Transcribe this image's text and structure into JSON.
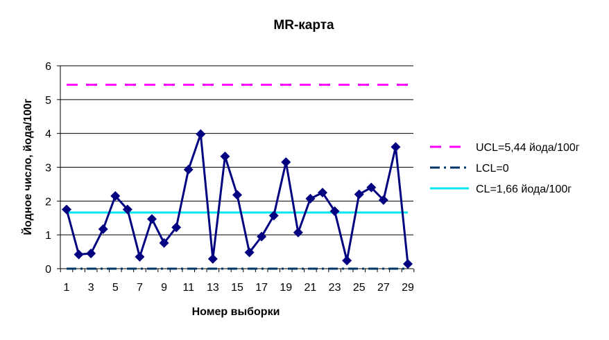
{
  "chart_data": {
    "type": "line",
    "title": "MR-карта",
    "xlabel": "Номер выборки",
    "ylabel": "Йодное число, йода/100г",
    "ylim": [
      0,
      6
    ],
    "yticks": [
      0,
      1,
      2,
      3,
      4,
      5,
      6
    ],
    "x": [
      1,
      2,
      3,
      4,
      5,
      6,
      7,
      8,
      9,
      10,
      11,
      12,
      13,
      14,
      15,
      16,
      17,
      18,
      19,
      20,
      21,
      22,
      23,
      24,
      25,
      26,
      27,
      28,
      29
    ],
    "xticks": [
      1,
      3,
      5,
      7,
      9,
      11,
      13,
      15,
      17,
      19,
      21,
      23,
      25,
      27,
      29
    ],
    "grid": "horizontal",
    "legend_position": "right",
    "series": [
      {
        "kind": "data",
        "color": "#000080",
        "marker": "diamond",
        "values": [
          1.75,
          0.42,
          0.45,
          1.17,
          2.15,
          1.75,
          0.35,
          1.47,
          0.76,
          1.22,
          2.93,
          3.98,
          0.29,
          3.32,
          2.18,
          0.48,
          0.95,
          1.57,
          3.15,
          1.07,
          2.07,
          2.25,
          1.7,
          0.24,
          2.2,
          2.4,
          2.03,
          3.6,
          0.14
        ]
      },
      {
        "kind": "limit",
        "name": "UCL=5,44 йода/100г",
        "value": 5.44,
        "color": "#ff00ff",
        "style": "dashed"
      },
      {
        "kind": "limit",
        "name": "LCL=0",
        "value": 0,
        "color": "#003366",
        "style": "dash-dot"
      },
      {
        "kind": "limit",
        "name": "CL=1,66 йода/100г",
        "value": 1.66,
        "color": "#00e5ee",
        "style": "solid"
      }
    ]
  }
}
